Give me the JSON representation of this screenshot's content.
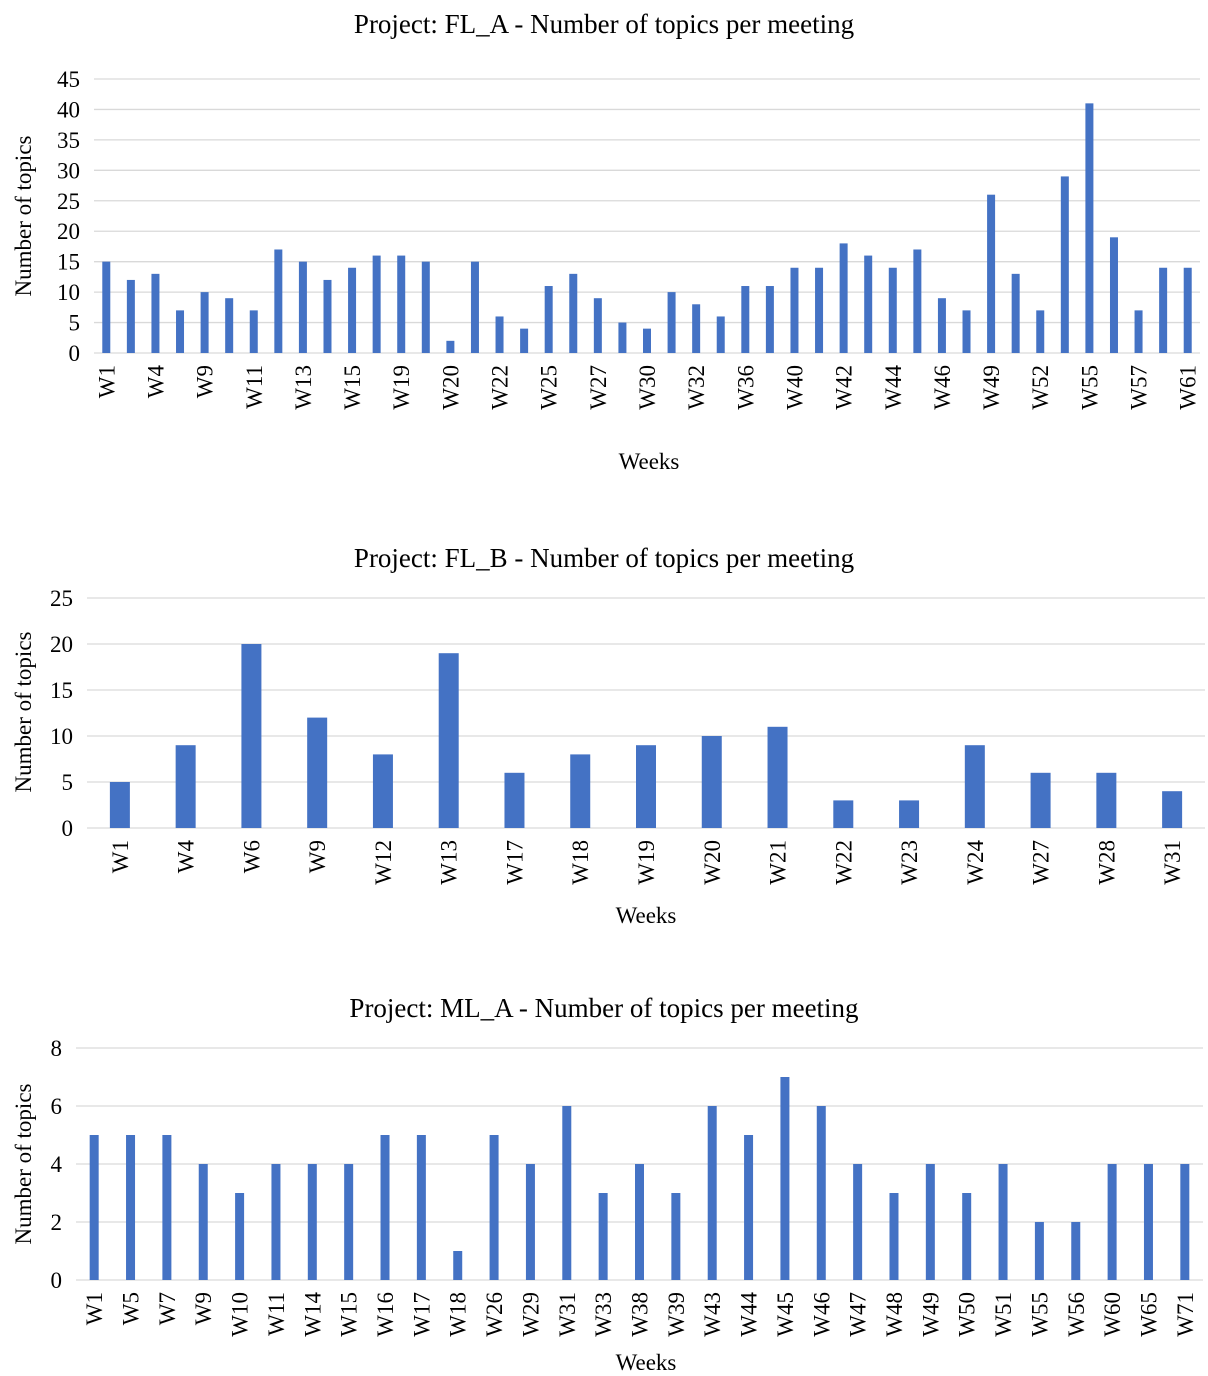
{
  "colors": {
    "bar": "#4472C4",
    "grid": "#D9D9D9",
    "text": "#000000",
    "background": "#FFFFFF"
  },
  "chart_data": [
    {
      "type": "bar",
      "title": "Project: FL_A - Number of topics per meeting",
      "xlabel": "Weeks",
      "ylabel": "Number of topics",
      "ylim": [
        0,
        45
      ],
      "yticks": [
        0,
        5,
        10,
        15,
        20,
        25,
        30,
        35,
        40,
        45
      ],
      "grid": true,
      "tick_labels": [
        "W1",
        "W4",
        "W9",
        "W11",
        "W13",
        "W15",
        "W19",
        "W20",
        "W22",
        "W25",
        "W27",
        "W30",
        "W32",
        "W36",
        "W40",
        "W42",
        "W44",
        "W46",
        "W49",
        "W52",
        "W55",
        "W57",
        "W61"
      ],
      "tick_label_every": 2,
      "values": [
        15,
        12,
        13,
        7,
        10,
        9,
        7,
        17,
        15,
        12,
        14,
        16,
        16,
        15,
        2,
        15,
        6,
        4,
        11,
        13,
        9,
        5,
        4,
        10,
        8,
        6,
        11,
        11,
        14,
        14,
        18,
        16,
        14,
        17,
        9,
        7,
        26,
        13,
        7,
        29,
        41,
        19,
        7,
        14,
        14
      ]
    },
    {
      "type": "bar",
      "title": "Project: FL_B - Number of topics per meeting",
      "xlabel": "Weeks",
      "ylabel": "Number of topics",
      "ylim": [
        0,
        25
      ],
      "yticks": [
        0,
        5,
        10,
        15,
        20,
        25
      ],
      "grid": true,
      "tick_labels": [
        "W1",
        "W4",
        "W6",
        "W9",
        "W12",
        "W13",
        "W17",
        "W18",
        "W19",
        "W20",
        "W21",
        "W22",
        "W23",
        "W24",
        "W27",
        "W28",
        "W31"
      ],
      "tick_label_every": 1,
      "values": [
        5,
        9,
        20,
        12,
        8,
        19,
        6,
        8,
        9,
        10,
        11,
        3,
        3,
        9,
        6,
        6,
        4
      ]
    },
    {
      "type": "bar",
      "title": "Project: ML_A - Number of topics per meeting",
      "xlabel": "Weeks",
      "ylabel": "Number of topics",
      "ylim": [
        0,
        8
      ],
      "yticks": [
        0,
        2,
        4,
        6,
        8
      ],
      "grid": true,
      "tick_labels": [
        "W1",
        "W5",
        "W7",
        "W9",
        "W10",
        "W11",
        "W14",
        "W15",
        "W16",
        "W17",
        "W18",
        "W26",
        "W29",
        "W31",
        "W33",
        "W38",
        "W39",
        "W43",
        "W44",
        "W45",
        "W46",
        "W47",
        "W48",
        "W49",
        "W50",
        "W51",
        "W55",
        "W56",
        "W60",
        "W65",
        "W71"
      ],
      "tick_label_every": 1,
      "values": [
        5,
        5,
        5,
        4,
        3,
        4,
        4,
        4,
        5,
        5,
        1,
        5,
        4,
        6,
        3,
        4,
        3,
        6,
        5,
        7,
        6,
        4,
        3,
        4,
        3,
        4,
        2,
        2,
        4,
        4,
        4
      ]
    }
  ]
}
